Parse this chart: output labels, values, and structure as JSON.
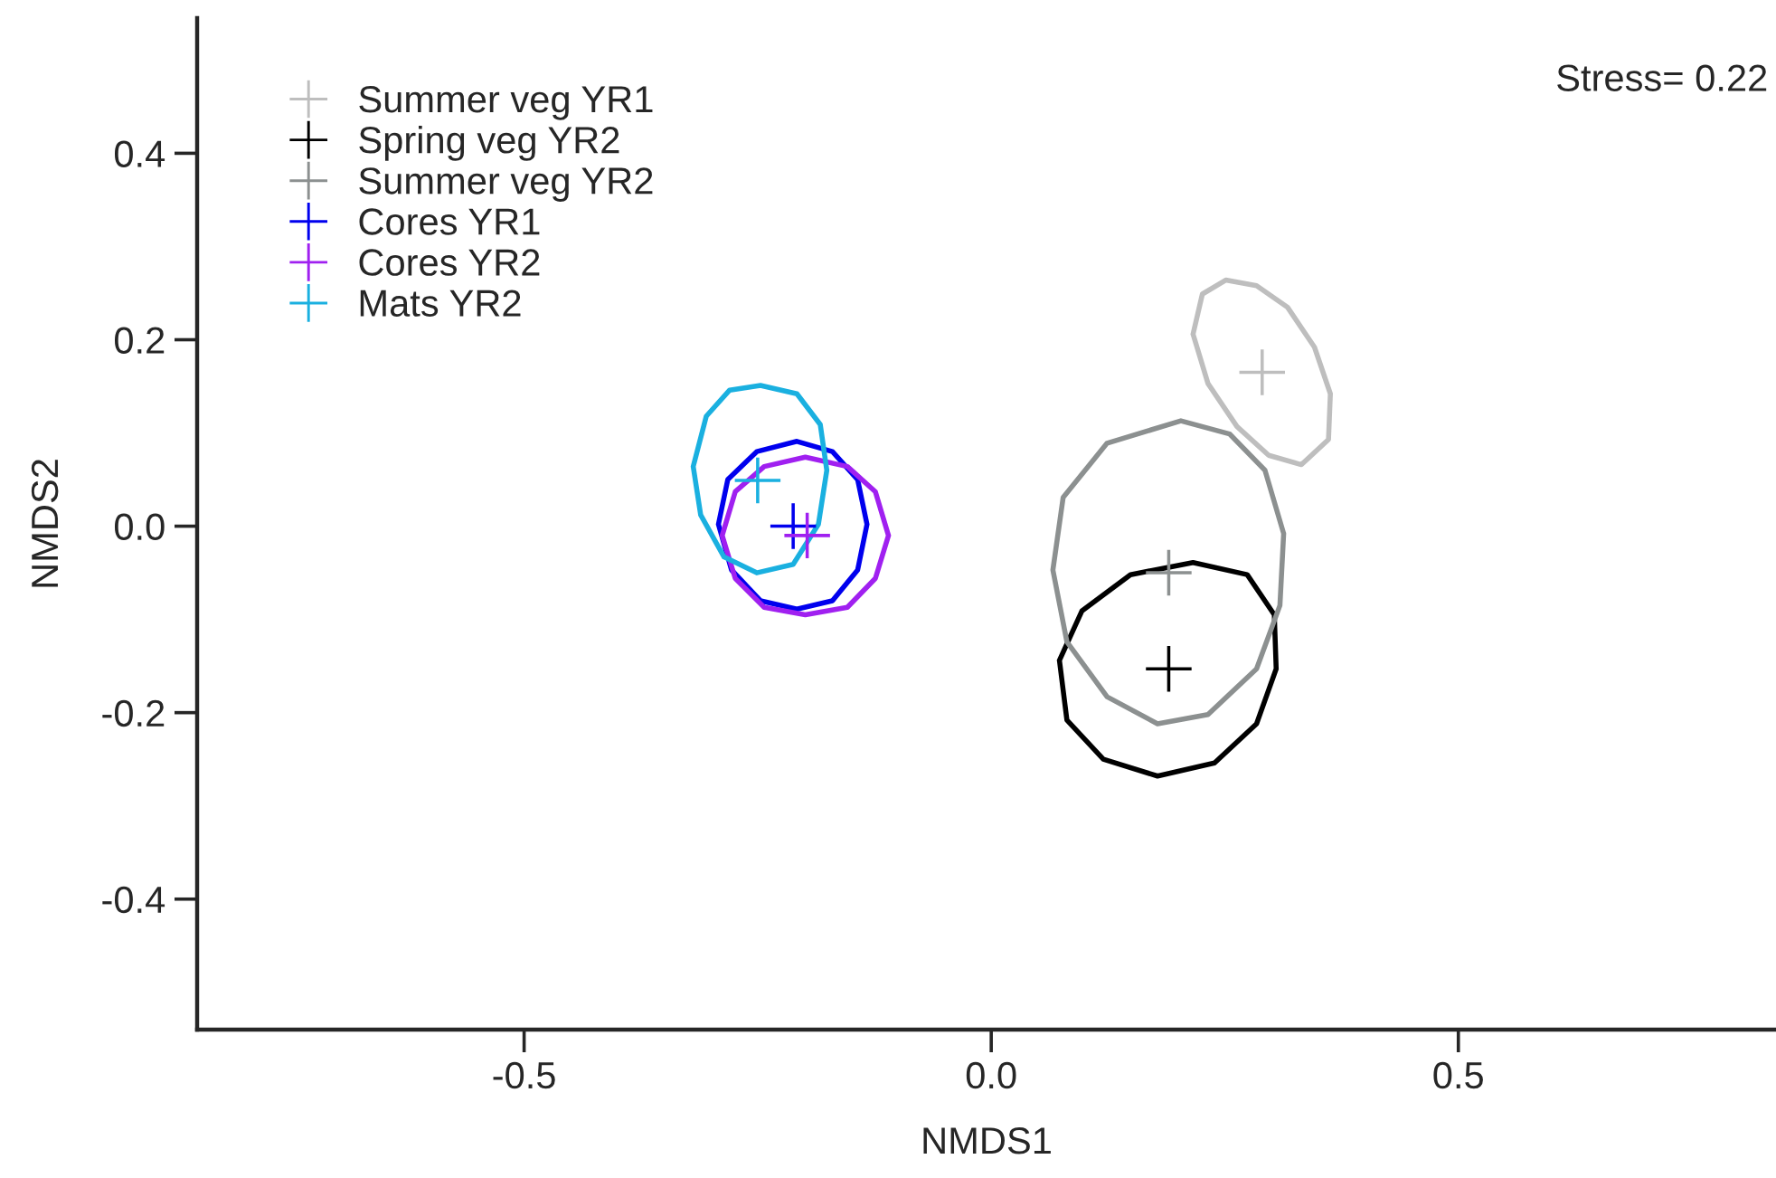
{
  "chart_data": {
    "type": "scatter",
    "xlabel": "NMDS1",
    "ylabel": "NMDS2",
    "xlim": [
      -0.85,
      0.84
    ],
    "ylim": [
      -0.54,
      0.545
    ],
    "xticks": [
      {
        "value": -0.5,
        "label": "-0.5"
      },
      {
        "value": 0,
        "label": "0.0"
      },
      {
        "value": 0.5,
        "label": "0.5"
      }
    ],
    "yticks": [
      {
        "value": -0.4,
        "label": "-0.4"
      },
      {
        "value": -0.2,
        "label": "-0.2"
      },
      {
        "value": 0,
        "label": "0.0"
      },
      {
        "value": 0.2,
        "label": "0.2"
      },
      {
        "value": 0.4,
        "label": "0.4"
      }
    ],
    "grid": false,
    "legend": "top left",
    "marker": "cross",
    "annotations": [
      "Stress= 0.22"
    ],
    "series": [
      {
        "name": "Summer veg YR1",
        "color": "#bebebe",
        "x": [
          0.29
        ],
        "values": [
          0.165
        ]
      },
      {
        "name": "Spring veg YR2",
        "color": "#000000",
        "x": [
          0.19
        ],
        "values": [
          -0.153
        ]
      },
      {
        "name": "Summer veg YR2",
        "color": "#8c9090",
        "x": [
          0.19
        ],
        "values": [
          -0.05
        ]
      },
      {
        "name": "Cores YR1",
        "color": "#0000ee",
        "x": [
          -0.212
        ],
        "values": [
          0.0
        ]
      },
      {
        "name": "Cores YR2",
        "color": "#a020f0",
        "x": [
          -0.197
        ],
        "values": [
          -0.01
        ]
      },
      {
        "name": "Mats YR2",
        "color": "#1ab0e0",
        "x": [
          -0.25
        ],
        "values": [
          0.049
        ]
      },
      {
        "type": "line",
        "marker": "none",
        "color": "#bebebe",
        "x": [
          0.216,
          0.226,
          0.251,
          0.284,
          0.317,
          0.346,
          0.363,
          null,
          0.216,
          0.232,
          0.263,
          0.297,
          0.332,
          0.361,
          0.363
        ],
        "values": [
          0.206,
          0.249,
          0.264,
          0.258,
          0.235,
          0.192,
          0.142,
          null,
          0.206,
          0.153,
          0.107,
          0.076,
          0.066,
          0.093,
          0.142
        ]
      },
      {
        "type": "line",
        "marker": "none",
        "color": "#000000",
        "x": [
          0.073,
          0.097,
          0.149,
          0.216,
          0.274,
          0.303,
          0.305,
          null,
          0.073,
          0.081,
          0.12,
          0.178,
          0.239,
          0.284,
          0.305
        ],
        "values": [
          -0.144,
          -0.091,
          -0.052,
          -0.039,
          -0.052,
          -0.095,
          -0.153,
          null,
          -0.144,
          -0.208,
          -0.25,
          -0.268,
          -0.254,
          -0.212,
          -0.153
        ]
      },
      {
        "type": "line",
        "marker": "none",
        "color": "#8c9090",
        "x": [
          0.066,
          0.077,
          0.124,
          0.203,
          0.255,
          0.293,
          0.313,
          null,
          0.066,
          0.081,
          0.124,
          0.178,
          0.232,
          0.284,
          0.309,
          0.313
        ],
        "values": [
          -0.047,
          0.031,
          0.089,
          0.113,
          0.099,
          0.06,
          -0.008,
          null,
          -0.047,
          -0.124,
          -0.183,
          -0.212,
          -0.202,
          -0.153,
          -0.085,
          -0.008
        ]
      },
      {
        "type": "line",
        "marker": "none",
        "color": "#0000ee",
        "x": [
          -0.292,
          -0.282,
          -0.251,
          -0.208,
          -0.17,
          -0.143,
          -0.133,
          null,
          -0.292,
          -0.278,
          -0.247,
          -0.208,
          -0.17,
          -0.143,
          -0.133
        ],
        "values": [
          0.002,
          0.05,
          0.08,
          0.091,
          0.08,
          0.05,
          0.002,
          null,
          0.002,
          -0.047,
          -0.08,
          -0.089,
          -0.08,
          -0.047,
          0.002
        ]
      },
      {
        "type": "line",
        "marker": "none",
        "color": "#a020f0",
        "x": [
          -0.288,
          -0.274,
          -0.243,
          -0.199,
          -0.154,
          -0.124,
          -0.11,
          null,
          -0.288,
          -0.274,
          -0.243,
          -0.199,
          -0.154,
          -0.124,
          -0.11
        ],
        "values": [
          -0.01,
          0.037,
          0.064,
          0.074,
          0.064,
          0.037,
          -0.01,
          null,
          -0.01,
          -0.056,
          -0.087,
          -0.095,
          -0.087,
          -0.056,
          -0.01
        ]
      },
      {
        "type": "line",
        "marker": "none",
        "color": "#1ab0e0",
        "x": [
          -0.319,
          -0.305,
          -0.28,
          -0.247,
          -0.208,
          -0.183,
          -0.176,
          null,
          -0.319,
          -0.311,
          -0.286,
          -0.251,
          -0.212,
          -0.185,
          -0.176
        ],
        "values": [
          0.064,
          0.118,
          0.146,
          0.151,
          0.142,
          0.109,
          0.06,
          null,
          0.064,
          0.012,
          -0.033,
          -0.05,
          -0.041,
          0.002,
          0.06
        ]
      }
    ]
  }
}
